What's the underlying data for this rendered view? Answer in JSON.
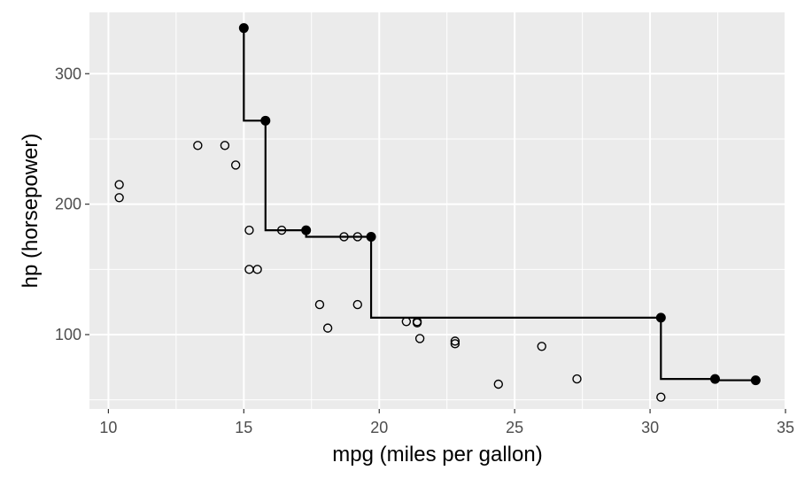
{
  "chart_data": {
    "type": "scatter",
    "xlabel": "mpg (miles per gallon)",
    "ylabel": "hp (horsepower)",
    "xlim": [
      9.3,
      35
    ],
    "ylim": [
      43,
      347
    ],
    "x_ticks": [
      10,
      15,
      20,
      25,
      30,
      35
    ],
    "y_ticks": [
      100,
      200,
      300
    ],
    "grid": true,
    "panel_background": "#ebebeb",
    "grid_color": "#ffffff",
    "point_color": "#000000",
    "line_color": "#000000",
    "series": [
      {
        "marker": "open-circle",
        "points": [
          [
            10.4,
            215
          ],
          [
            10.4,
            205
          ],
          [
            13.3,
            245
          ],
          [
            14.3,
            245
          ],
          [
            14.7,
            230
          ],
          [
            15.2,
            180
          ],
          [
            15.2,
            150
          ],
          [
            15.5,
            150
          ],
          [
            16.4,
            180
          ],
          [
            17.8,
            123
          ],
          [
            18.1,
            105
          ],
          [
            18.7,
            175
          ],
          [
            19.2,
            175
          ],
          [
            19.2,
            123
          ],
          [
            21.0,
            110
          ],
          [
            21.4,
            110
          ],
          [
            21.4,
            109
          ],
          [
            21.5,
            97
          ],
          [
            22.8,
            95
          ],
          [
            22.8,
            93
          ],
          [
            24.4,
            62
          ],
          [
            26.0,
            91
          ],
          [
            27.3,
            66
          ],
          [
            30.4,
            52
          ]
        ]
      },
      {
        "marker": "filled-circle",
        "line": "step",
        "points": [
          [
            15.0,
            335
          ],
          [
            15.8,
            264
          ],
          [
            17.3,
            180
          ],
          [
            19.7,
            175
          ],
          [
            30.4,
            113
          ],
          [
            32.4,
            66
          ],
          [
            33.9,
            65
          ]
        ]
      }
    ]
  }
}
